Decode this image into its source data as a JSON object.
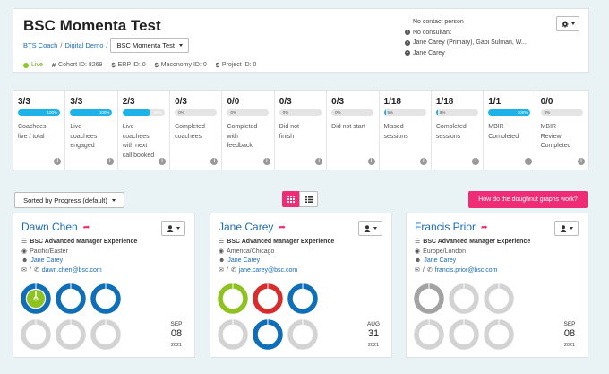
{
  "header": {
    "title": "BSC Momenta Test",
    "breadcrumb": [
      "BTS Coach",
      "Digital Demo"
    ],
    "breadcrumb_sep": "/",
    "program_select": "BSC Momenta Test",
    "status": "Live",
    "cohort": "Cohort ID: 8269",
    "erp": "ERP ID: 0",
    "maconomy": "Maconomy ID: 0",
    "project": "Project ID: 0",
    "contact_person": "No contact person",
    "consultant": "No consultant",
    "coaches": "Jane Carey (Primary), Gabi Sulman, W...",
    "owner": "Jane Carey"
  },
  "stats": [
    {
      "value": "3/3",
      "progress": 100,
      "progress_label": "100%",
      "label_lines": [
        "Coachees",
        "live / total"
      ]
    },
    {
      "value": "3/3",
      "progress": 100,
      "progress_label": "100%",
      "label_lines": [
        "Live",
        "coachees",
        "engaged"
      ]
    },
    {
      "value": "2/3",
      "progress": 66,
      "progress_label": "66%",
      "label_lines": [
        "Live",
        "coachees",
        "with next",
        "call booked"
      ]
    },
    {
      "value": "0/3",
      "progress": 0,
      "progress_label": "0%",
      "label_lines": [
        "Completed",
        "coachees"
      ]
    },
    {
      "value": "0/0",
      "progress": 0,
      "progress_label": "0%",
      "label_lines": [
        "Completed",
        "with",
        "feedback"
      ]
    },
    {
      "value": "0/3",
      "progress": 0,
      "progress_label": "0%",
      "label_lines": [
        "Did not",
        "finish"
      ]
    },
    {
      "value": "0/3",
      "progress": 0,
      "progress_label": "0%",
      "label_lines": [
        "Did not start"
      ]
    },
    {
      "value": "1/18",
      "progress": 5,
      "progress_label": "5%",
      "label_lines": [
        "Missed",
        "sessions"
      ]
    },
    {
      "value": "1/18",
      "progress": 5,
      "progress_label": "5%",
      "label_lines": [
        "Completed",
        "sessions"
      ]
    },
    {
      "value": "1/1",
      "progress": 100,
      "progress_label": "100%",
      "label_lines": [
        "MBIR",
        "Completed"
      ]
    },
    {
      "value": "0/0",
      "progress": 0,
      "progress_label": "0%",
      "label_lines": [
        "MBIR",
        "Review",
        "Completed"
      ]
    }
  ],
  "toolbar": {
    "sort_label": "Sorted by Progress (default)",
    "help_label": "How do the doughnut graphs work?"
  },
  "colors": {
    "accent": "#ee2d76",
    "link": "#1c6cb5",
    "donut_blue": "#0e6eb8",
    "donut_green": "#8dc21f",
    "donut_red": "#d92b2b",
    "donut_grey": "#d3d3d3",
    "donut_dark_grey": "#a3a3a3"
  },
  "coaches": [
    {
      "name": "Dawn Chen",
      "program": "BSC Advanced Manager Experience",
      "timezone": "Pacific/Easter",
      "owner": "Jane Carey",
      "email": "dawn.chen@bsc.com",
      "date": {
        "month": "SEP",
        "day": "08",
        "year": "2021"
      },
      "donuts": [
        "green-blue",
        "blue",
        "blue",
        "grey",
        "grey",
        "grey-needle"
      ]
    },
    {
      "name": "Jane Carey",
      "program": "BSC Advanced Manager Experience",
      "timezone": "America/Chicago",
      "owner": "Jane Carey",
      "email": "jane.carey@bsc.com",
      "date": {
        "month": "AUG",
        "day": "31",
        "year": "2021"
      },
      "donuts": [
        "green-needle",
        "red",
        "blue",
        "grey",
        "blue",
        "grey-needle"
      ]
    },
    {
      "name": "Francis Prior",
      "program": "BSC Advanced Manager Experience",
      "timezone": "Europe/London",
      "owner": "Jane Carey",
      "email": "francis.prior@bsc.com",
      "date": {
        "month": "SEP",
        "day": "08",
        "year": "2021"
      },
      "donuts": [
        "darkgrey-needle",
        "grey",
        "grey",
        "grey",
        "grey",
        "grey-needle"
      ]
    }
  ]
}
